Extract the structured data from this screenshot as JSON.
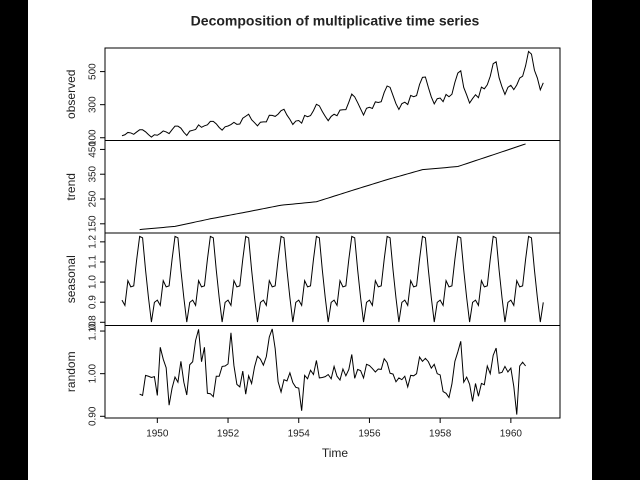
{
  "title": "Decomposition of multiplicative time series",
  "xlabel": "Time",
  "xlim": [
    1948.52,
    1961.39
  ],
  "xticks": [
    1950,
    1952,
    1954,
    1956,
    1958,
    1960
  ],
  "x": [
    1949,
    1949.083,
    1949.167,
    1949.25,
    1949.333,
    1949.417,
    1949.5,
    1949.583,
    1949.667,
    1949.75,
    1949.833,
    1949.917,
    1950,
    1950.083,
    1950.167,
    1950.25,
    1950.333,
    1950.417,
    1950.5,
    1950.583,
    1950.667,
    1950.75,
    1950.833,
    1950.917,
    1951,
    1951.083,
    1951.167,
    1951.25,
    1951.333,
    1951.417,
    1951.5,
    1951.583,
    1951.667,
    1951.75,
    1951.833,
    1951.917,
    1952,
    1952.083,
    1952.167,
    1952.25,
    1952.333,
    1952.417,
    1952.5,
    1952.583,
    1952.667,
    1952.75,
    1952.833,
    1952.917,
    1953,
    1953.083,
    1953.167,
    1953.25,
    1953.333,
    1953.417,
    1953.5,
    1953.583,
    1953.667,
    1953.75,
    1953.833,
    1953.917,
    1954,
    1954.083,
    1954.167,
    1954.25,
    1954.333,
    1954.417,
    1954.5,
    1954.583,
    1954.667,
    1954.75,
    1954.833,
    1954.917,
    1955,
    1955.083,
    1955.167,
    1955.25,
    1955.333,
    1955.417,
    1955.5,
    1955.583,
    1955.667,
    1955.75,
    1955.833,
    1955.917,
    1956,
    1956.083,
    1956.167,
    1956.25,
    1956.333,
    1956.417,
    1956.5,
    1956.583,
    1956.667,
    1956.75,
    1956.833,
    1956.917,
    1957,
    1957.083,
    1957.167,
    1957.25,
    1957.333,
    1957.417,
    1957.5,
    1957.583,
    1957.667,
    1957.75,
    1957.833,
    1957.917,
    1958,
    1958.083,
    1958.167,
    1958.25,
    1958.333,
    1958.417,
    1958.5,
    1958.583,
    1958.667,
    1958.75,
    1958.833,
    1958.917,
    1959,
    1959.083,
    1959.167,
    1959.25,
    1959.333,
    1959.417,
    1959.5,
    1959.583,
    1959.667,
    1959.75,
    1959.833,
    1959.917,
    1960,
    1960.083,
    1960.167,
    1960.25,
    1960.333,
    1960.417,
    1960.5,
    1960.583,
    1960.667,
    1960.75,
    1960.833,
    1960.917
  ],
  "chart_data": [
    {
      "type": "line",
      "ylabel": "observed",
      "color": "#000000",
      "ylim": [
        83.3,
        642.7
      ],
      "yticks": [
        100,
        300,
        500
      ],
      "values": [
        112,
        118,
        132,
        129,
        121,
        135,
        148,
        148,
        136,
        119,
        104,
        118,
        115,
        126,
        141,
        135,
        125,
        149,
        170,
        170,
        158,
        133,
        114,
        140,
        145,
        150,
        178,
        163,
        172,
        178,
        199,
        199,
        184,
        162,
        146,
        166,
        171,
        180,
        193,
        181,
        183,
        218,
        230,
        242,
        209,
        191,
        172,
        194,
        196,
        196,
        236,
        235,
        229,
        243,
        264,
        272,
        237,
        211,
        180,
        201,
        204,
        188,
        235,
        227,
        234,
        264,
        302,
        293,
        259,
        229,
        203,
        229,
        242,
        233,
        267,
        269,
        270,
        315,
        364,
        347,
        312,
        274,
        237,
        278,
        284,
        277,
        317,
        313,
        318,
        374,
        413,
        405,
        355,
        306,
        271,
        306,
        315,
        301,
        356,
        348,
        355,
        422,
        465,
        467,
        404,
        347,
        305,
        336,
        340,
        318,
        362,
        348,
        363,
        435,
        491,
        505,
        404,
        359,
        310,
        337,
        360,
        342,
        406,
        396,
        420,
        472,
        548,
        559,
        463,
        407,
        362,
        405,
        417,
        391,
        419,
        461,
        472,
        535,
        622,
        606,
        508,
        461,
        390,
        432
      ]
    },
    {
      "type": "line",
      "ylabel": "trend",
      "color": "#000000",
      "ylim": [
        112.9,
        486
      ],
      "yticks": [
        150,
        250,
        350,
        450
      ],
      "values": [
        null,
        null,
        null,
        null,
        null,
        null,
        126.7,
        127.8,
        128.8,
        129.9,
        131.0,
        132.1,
        133.2,
        134.3,
        135.3,
        136.4,
        137.5,
        138.6,
        139.7,
        142.2,
        144.8,
        147.3,
        149.8,
        152.4,
        154.9,
        157.5,
        160.0,
        162.5,
        165.1,
        167.6,
        170.2,
        172.4,
        174.6,
        176.9,
        179.1,
        181.3,
        183.6,
        185.8,
        188.1,
        190.3,
        192.5,
        194.8,
        197.0,
        199.3,
        201.7,
        204.0,
        206.3,
        208.7,
        211.0,
        213.3,
        215.7,
        218.0,
        220.3,
        222.7,
        225.0,
        226.2,
        227.3,
        228.5,
        229.6,
        230.8,
        232.0,
        233.1,
        234.3,
        235.4,
        236.6,
        237.8,
        238.9,
        242.7,
        246.4,
        250.2,
        253.9,
        257.7,
        261.5,
        265.2,
        269.0,
        272.7,
        276.5,
        280.2,
        284.0,
        287.7,
        291.4,
        295.1,
        298.8,
        302.4,
        306.1,
        309.8,
        313.5,
        317.2,
        320.9,
        324.6,
        328.3,
        331.6,
        335.0,
        338.3,
        341.6,
        345.0,
        348.3,
        351.7,
        355.0,
        358.4,
        361.7,
        365.1,
        368.4,
        369.5,
        370.5,
        371.6,
        372.6,
        373.7,
        374.7,
        375.8,
        376.8,
        377.9,
        378.9,
        380.0,
        381.0,
        384.9,
        388.9,
        392.8,
        396.8,
        400.7,
        404.7,
        408.6,
        412.6,
        416.5,
        420.4,
        424.4,
        428.3,
        432.3,
        436.3,
        440.3,
        444.3,
        448.3,
        452.3,
        456.2,
        460.2,
        464.2,
        468.2,
        472.2,
        null,
        null,
        null,
        null,
        null,
        null
      ]
    },
    {
      "type": "line",
      "ylabel": "seasonal",
      "color": "#000000",
      "ylim": [
        0.784,
        1.244
      ],
      "yticks": [
        0.8,
        0.9,
        {
          "value": 1,
          "label": "1.0"
        },
        1.1,
        1.2
      ],
      "values": [
        0.91,
        0.884,
        1.007,
        0.976,
        0.981,
        1.113,
        1.227,
        1.22,
        1.06,
        0.922,
        0.801,
        0.899,
        0.91,
        0.884,
        1.007,
        0.976,
        0.981,
        1.113,
        1.227,
        1.22,
        1.06,
        0.922,
        0.801,
        0.899,
        0.91,
        0.884,
        1.007,
        0.976,
        0.981,
        1.113,
        1.227,
        1.22,
        1.06,
        0.922,
        0.801,
        0.899,
        0.91,
        0.884,
        1.007,
        0.976,
        0.981,
        1.113,
        1.227,
        1.22,
        1.06,
        0.922,
        0.801,
        0.899,
        0.91,
        0.884,
        1.007,
        0.976,
        0.981,
        1.113,
        1.227,
        1.22,
        1.06,
        0.922,
        0.801,
        0.899,
        0.91,
        0.884,
        1.007,
        0.976,
        0.981,
        1.113,
        1.227,
        1.22,
        1.06,
        0.922,
        0.801,
        0.899,
        0.91,
        0.884,
        1.007,
        0.976,
        0.981,
        1.113,
        1.227,
        1.22,
        1.06,
        0.922,
        0.801,
        0.899,
        0.91,
        0.884,
        1.007,
        0.976,
        0.981,
        1.113,
        1.227,
        1.22,
        1.06,
        0.922,
        0.801,
        0.899,
        0.91,
        0.884,
        1.007,
        0.976,
        0.981,
        1.113,
        1.227,
        1.22,
        1.06,
        0.922,
        0.801,
        0.899,
        0.91,
        0.884,
        1.007,
        0.976,
        0.981,
        1.113,
        1.227,
        1.22,
        1.06,
        0.922,
        0.801,
        0.899,
        0.91,
        0.884,
        1.007,
        0.976,
        0.981,
        1.113,
        1.227,
        1.22,
        1.06,
        0.922,
        0.801,
        0.899,
        0.91,
        0.884,
        1.007,
        0.976,
        0.981,
        1.113,
        1.227,
        1.22,
        1.06,
        0.922,
        0.801,
        0.899
      ]
    },
    {
      "type": "line",
      "ylabel": "random",
      "color": "#000000",
      "ylim": [
        0.896,
        1.113
      ],
      "yticks": [
        {
          "value": 0.9,
          "label": "0.90"
        },
        {
          "value": 1,
          "label": "1.00"
        },
        {
          "value": 1.1,
          "label": "1.10"
        }
      ],
      "values": [
        null,
        null,
        null,
        null,
        null,
        null,
        0.952,
        0.949,
        0.996,
        0.994,
        0.991,
        0.993,
        0.949,
        1.062,
        1.034,
        1.014,
        0.926,
        0.966,
        0.992,
        0.98,
        1.029,
        0.98,
        0.95,
        1.021,
        1.028,
        1.078,
        1.104,
        1.028,
        1.062,
        0.954,
        0.953,
        0.946,
        0.994,
        0.994,
        1.017,
        1.018,
        1.023,
        1.096,
        1.019,
        0.975,
        0.969,
        1.006,
        0.952,
        0.995,
        0.977,
        1.016,
        1.041,
        1.034,
        1.02,
        1.04,
        1.086,
        1.105,
        1.059,
        0.981,
        0.957,
        0.986,
        0.983,
        1.002,
        0.979,
        0.968,
        0.966,
        0.913,
        0.996,
        0.988,
        1.008,
        0.998,
        1.031,
        0.99,
        0.991,
        0.993,
        0.998,
        0.988,
        1.017,
        0.994,
        0.985,
        1.011,
        0.995,
        1.01,
        1.045,
        0.989,
        1.01,
        1.007,
        0.99,
        1.022,
        1.019,
        1.012,
        1.004,
        1.011,
        1.01,
        1.035,
        1.026,
        1.001,
        0.999,
        0.981,
        0.99,
        0.986,
        0.994,
        0.969,
        0.996,
        0.995,
        1.0,
        1.039,
        1.029,
        1.036,
        1.028,
        1.013,
        1.022,
        1.0,
        0.997,
        0.958,
        0.954,
        0.944,
        0.976,
        1.029,
        1.051,
        1.076,
        0.98,
        0.992,
        0.975,
        0.935,
        0.977,
        0.947,
        0.977,
        0.974,
        1.018,
        1.0,
        1.043,
        1.06,
        1.001,
        1.003,
        1.017,
        1.004,
        1.013,
        0.97,
        0.904,
        1.018,
        1.027,
        1.018,
        null,
        null,
        null,
        null,
        null,
        null
      ]
    }
  ]
}
